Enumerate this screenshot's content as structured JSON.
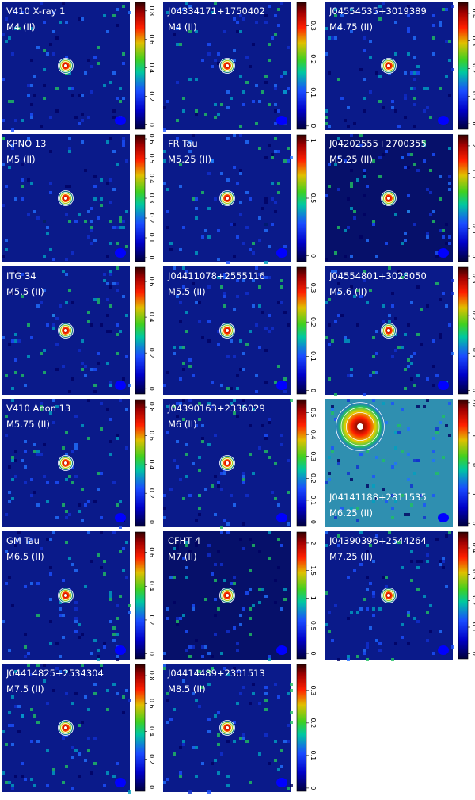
{
  "panels": [
    {
      "name": "V410 X-ray 1",
      "spectral_type": "M4 (II)",
      "cbar_range": [
        -0.03,
        0.86
      ],
      "cbar_ticks": [
        0,
        0.2,
        0.4,
        0.6,
        0.8
      ],
      "background": "#0a1a8a",
      "label_corner": "top-left"
    },
    {
      "name": "J04334171+1750402",
      "spectral_type": "M4 (II)",
      "cbar_range": [
        -0.01,
        0.37
      ],
      "cbar_ticks": [
        0,
        0.1,
        0.2,
        0.3
      ],
      "background": "#0a1a8a",
      "label_corner": "top-left"
    },
    {
      "name": "J04554535+3019389",
      "spectral_type": "M4.75 (II)",
      "cbar_range": [
        -0.02,
        0.44
      ],
      "cbar_ticks": [
        0,
        0.1,
        0.2,
        0.3,
        0.4
      ],
      "background": "#0a1a8a",
      "label_corner": "top-left"
    },
    {
      "name": "KPNO 13",
      "spectral_type": "M5 (II)",
      "cbar_range": [
        -0.02,
        0.62
      ],
      "cbar_ticks": [
        0,
        0.1,
        0.2,
        0.3,
        0.4,
        0.5,
        0.6
      ],
      "background": "#0a1a8a",
      "label_corner": "top-left"
    },
    {
      "name": "FR Tau",
      "spectral_type": "M5.25 (II)",
      "cbar_range": [
        -0.05,
        1.05
      ],
      "cbar_ticks": [
        0,
        0.5,
        1
      ],
      "background": "#0a1a8a",
      "label_corner": "top-left"
    },
    {
      "name": "J04202555+2700355",
      "spectral_type": "M5.25 (II)",
      "cbar_range": [
        -0.1,
        2.2
      ],
      "cbar_ticks": [
        0,
        0.5,
        1,
        1.5,
        2
      ],
      "background": "#06106a",
      "label_corner": "top-left"
    },
    {
      "name": "ITG 34",
      "spectral_type": "M5.5 (II)",
      "cbar_range": [
        -0.03,
        0.68
      ],
      "cbar_ticks": [
        0,
        0.2,
        0.4,
        0.6
      ],
      "background": "#0a1a8a",
      "label_corner": "top-left"
    },
    {
      "name": "J04411078+2555116",
      "spectral_type": "M5.5 (II)",
      "cbar_range": [
        -0.01,
        0.36
      ],
      "cbar_ticks": [
        0,
        0.1,
        0.2,
        0.3
      ],
      "background": "#0a1a8a",
      "label_corner": "top-left"
    },
    {
      "name": "J04554801+3028050",
      "spectral_type": "M5.6 (II)",
      "cbar_range": [
        -0.01,
        0.33
      ],
      "cbar_ticks": [
        0,
        0.1,
        0.2,
        0.3
      ],
      "background": "#0a1a8a",
      "label_corner": "top-left"
    },
    {
      "name": "V410 Anon 13",
      "spectral_type": "M5.75 (II)",
      "cbar_range": [
        -0.03,
        0.85
      ],
      "cbar_ticks": [
        0,
        0.2,
        0.4,
        0.6,
        0.8
      ],
      "background": "#0a1a8a",
      "label_corner": "top-left"
    },
    {
      "name": "J04390163+2336029",
      "spectral_type": "M6 (II)",
      "cbar_range": [
        -0.02,
        0.56
      ],
      "cbar_ticks": [
        0,
        0.1,
        0.2,
        0.3,
        0.4,
        0.5
      ],
      "background": "#0a1a8a",
      "label_corner": "top-left"
    },
    {
      "name": "J04141188+2811535",
      "spectral_type": "M6.25 (II)",
      "cbar_range": [
        -0.5,
        20.5
      ],
      "cbar_ticks": [
        0,
        5,
        10,
        15,
        20
      ],
      "background": "#2f8fb0",
      "label_corner": "bottom-left"
    },
    {
      "name": "GM Tau",
      "spectral_type": "M6.5 (II)",
      "cbar_range": [
        -0.03,
        0.72
      ],
      "cbar_ticks": [
        0,
        0.2,
        0.4,
        0.6
      ],
      "background": "#0a1a8a",
      "label_corner": "top-left"
    },
    {
      "name": "CFHT 4",
      "spectral_type": "M7 (II)",
      "cbar_range": [
        -0.1,
        2.2
      ],
      "cbar_ticks": [
        0,
        0.5,
        1,
        1.5,
        2
      ],
      "background": "#06106a",
      "label_corner": "top-left"
    },
    {
      "name": "J04390396+2544264",
      "spectral_type": "M7.25 (II)",
      "cbar_range": [
        -0.02,
        0.46
      ],
      "cbar_ticks": [
        0,
        0.1,
        0.2,
        0.3,
        0.4
      ],
      "background": "#0a1a8a",
      "label_corner": "top-left"
    },
    {
      "name": "J04414825+2534304",
      "spectral_type": "M7.5 (II)",
      "cbar_range": [
        -0.03,
        0.88
      ],
      "cbar_ticks": [
        0,
        0.2,
        0.4,
        0.6,
        0.8
      ],
      "background": "#0a1a8a",
      "label_corner": "top-left"
    },
    {
      "name": "J04414489+2301513",
      "spectral_type": "M8.5 (II)",
      "cbar_range": [
        -0.01,
        0.38
      ],
      "cbar_ticks": [
        0,
        0.1,
        0.2,
        0.3
      ],
      "background": "#0a1a8a",
      "label_corner": "top-left"
    }
  ]
}
